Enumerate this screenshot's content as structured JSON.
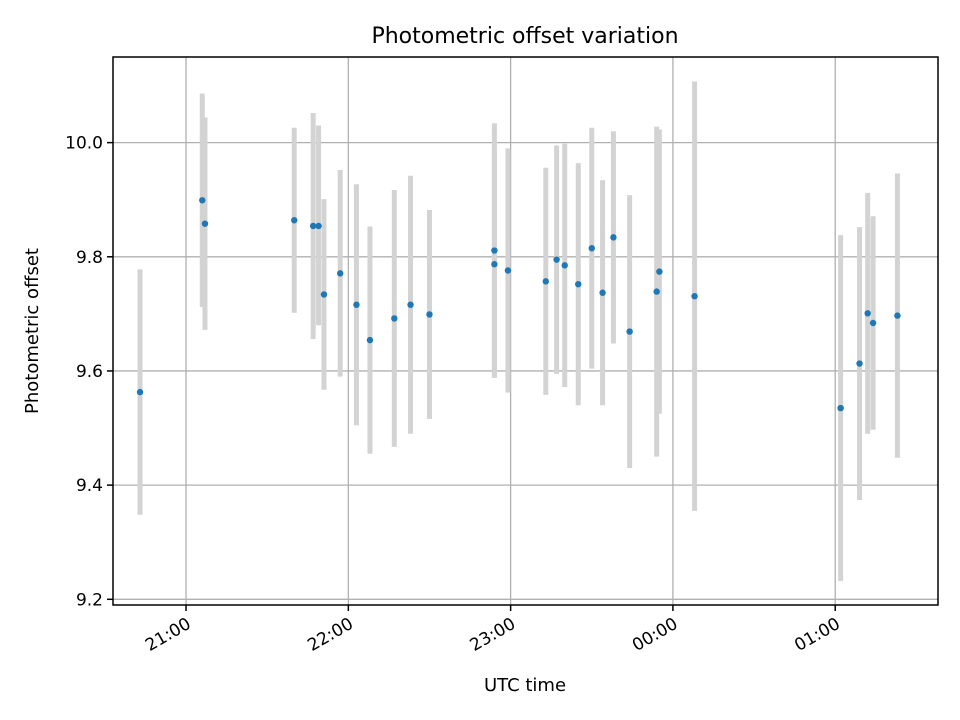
{
  "chart_data": {
    "type": "scatter",
    "title": "Photometric offset variation",
    "xlabel": "UTC time",
    "ylabel": "Photometric offset",
    "x_unit": "UTC hours (values past 24 are after midnight)",
    "xlim": [
      "20:33",
      "01:38"
    ],
    "ylim": [
      9.19,
      10.15
    ],
    "x_ticks": [
      {
        "t": "21:00",
        "label": "21:00"
      },
      {
        "t": "22:00",
        "label": "22:00"
      },
      {
        "t": "23:00",
        "label": "23:00"
      },
      {
        "t": "00:00",
        "label": "00:00"
      },
      {
        "t": "01:00",
        "label": "01:00"
      }
    ],
    "y_ticks": [
      {
        "v": 9.2,
        "label": "9.2"
      },
      {
        "v": 9.4,
        "label": "9.4"
      },
      {
        "v": 9.6,
        "label": "9.6"
      },
      {
        "v": 9.8,
        "label": "9.8"
      },
      {
        "v": 10.0,
        "label": "10.0"
      }
    ],
    "grid": true,
    "marker_color": "#1f77b4",
    "errorbar_color": "#d3d3d3",
    "points": [
      {
        "t": "20:43",
        "y": 9.563,
        "lo": 9.348,
        "hi": 9.778
      },
      {
        "t": "21:06",
        "y": 9.899,
        "lo": 9.712,
        "hi": 10.086
      },
      {
        "t": "21:07",
        "y": 9.858,
        "lo": 9.672,
        "hi": 10.044
      },
      {
        "t": "21:40",
        "y": 9.864,
        "lo": 9.702,
        "hi": 10.026
      },
      {
        "t": "21:47",
        "y": 9.854,
        "lo": 9.656,
        "hi": 10.052
      },
      {
        "t": "21:49",
        "y": 9.854,
        "lo": 9.68,
        "hi": 10.03
      },
      {
        "t": "21:51",
        "y": 9.734,
        "lo": 9.567,
        "hi": 9.901
      },
      {
        "t": "21:57",
        "y": 9.771,
        "lo": 9.59,
        "hi": 9.952
      },
      {
        "t": "22:03",
        "y": 9.716,
        "lo": 9.505,
        "hi": 9.927
      },
      {
        "t": "22:08",
        "y": 9.654,
        "lo": 9.455,
        "hi": 9.853
      },
      {
        "t": "22:17",
        "y": 9.692,
        "lo": 9.467,
        "hi": 9.917
      },
      {
        "t": "22:23",
        "y": 9.716,
        "lo": 9.49,
        "hi": 9.942
      },
      {
        "t": "22:30",
        "y": 9.699,
        "lo": 9.516,
        "hi": 9.882
      },
      {
        "t": "22:54",
        "y": 9.787,
        "lo": 9.588,
        "hi": 9.986
      },
      {
        "t": "22:54",
        "y": 9.811,
        "lo": 9.588,
        "hi": 10.034
      },
      {
        "t": "22:59",
        "y": 9.776,
        "lo": 9.562,
        "hi": 9.99
      },
      {
        "t": "23:13",
        "y": 9.757,
        "lo": 9.558,
        "hi": 9.956
      },
      {
        "t": "23:17",
        "y": 9.795,
        "lo": 9.595,
        "hi": 9.995
      },
      {
        "t": "23:20",
        "y": 9.785,
        "lo": 9.572,
        "hi": 9.998
      },
      {
        "t": "23:25",
        "y": 9.752,
        "lo": 9.54,
        "hi": 9.964
      },
      {
        "t": "23:30",
        "y": 9.815,
        "lo": 9.604,
        "hi": 10.026
      },
      {
        "t": "23:34",
        "y": 9.737,
        "lo": 9.54,
        "hi": 9.934
      },
      {
        "t": "23:38",
        "y": 9.834,
        "lo": 9.648,
        "hi": 10.02
      },
      {
        "t": "23:44",
        "y": 9.669,
        "lo": 9.43,
        "hi": 9.908
      },
      {
        "t": "23:54",
        "y": 9.739,
        "lo": 9.45,
        "hi": 10.028
      },
      {
        "t": "23:55",
        "y": 9.774,
        "lo": 9.525,
        "hi": 10.023
      },
      {
        "t": "00:08",
        "y": 9.731,
        "lo": 9.355,
        "hi": 10.107
      },
      {
        "t": "01:02",
        "y": 9.535,
        "lo": 9.232,
        "hi": 9.838
      },
      {
        "t": "01:09",
        "y": 9.613,
        "lo": 9.374,
        "hi": 9.852
      },
      {
        "t": "01:12",
        "y": 9.701,
        "lo": 9.49,
        "hi": 9.912
      },
      {
        "t": "01:14",
        "y": 9.684,
        "lo": 9.497,
        "hi": 9.871
      },
      {
        "t": "01:23",
        "y": 9.697,
        "lo": 9.448,
        "hi": 9.946
      }
    ]
  }
}
